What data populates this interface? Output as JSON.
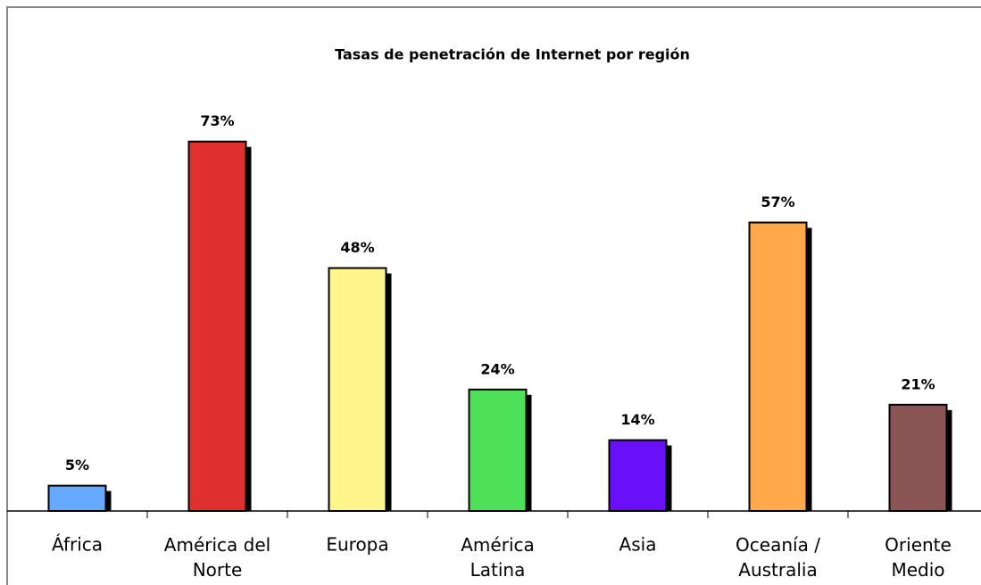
{
  "chart_data": {
    "type": "bar",
    "title": "Tasas de penetración de Internet por región",
    "categories": [
      "África",
      "América del Norte",
      "Europa",
      "América Latina",
      "Asia",
      "Oceanía / Australia",
      "Oriente Medio"
    ],
    "values": [
      5,
      73,
      48,
      24,
      14,
      57,
      21
    ],
    "value_labels": [
      "5%",
      "73%",
      "48%",
      "24%",
      "14%",
      "57%",
      "21%"
    ],
    "colors": [
      "#66aaff",
      "#e03030",
      "#fff58a",
      "#4fe05a",
      "#6a10f8",
      "#ffa94a",
      "#8b5555"
    ],
    "ylim": [
      0,
      80
    ]
  }
}
